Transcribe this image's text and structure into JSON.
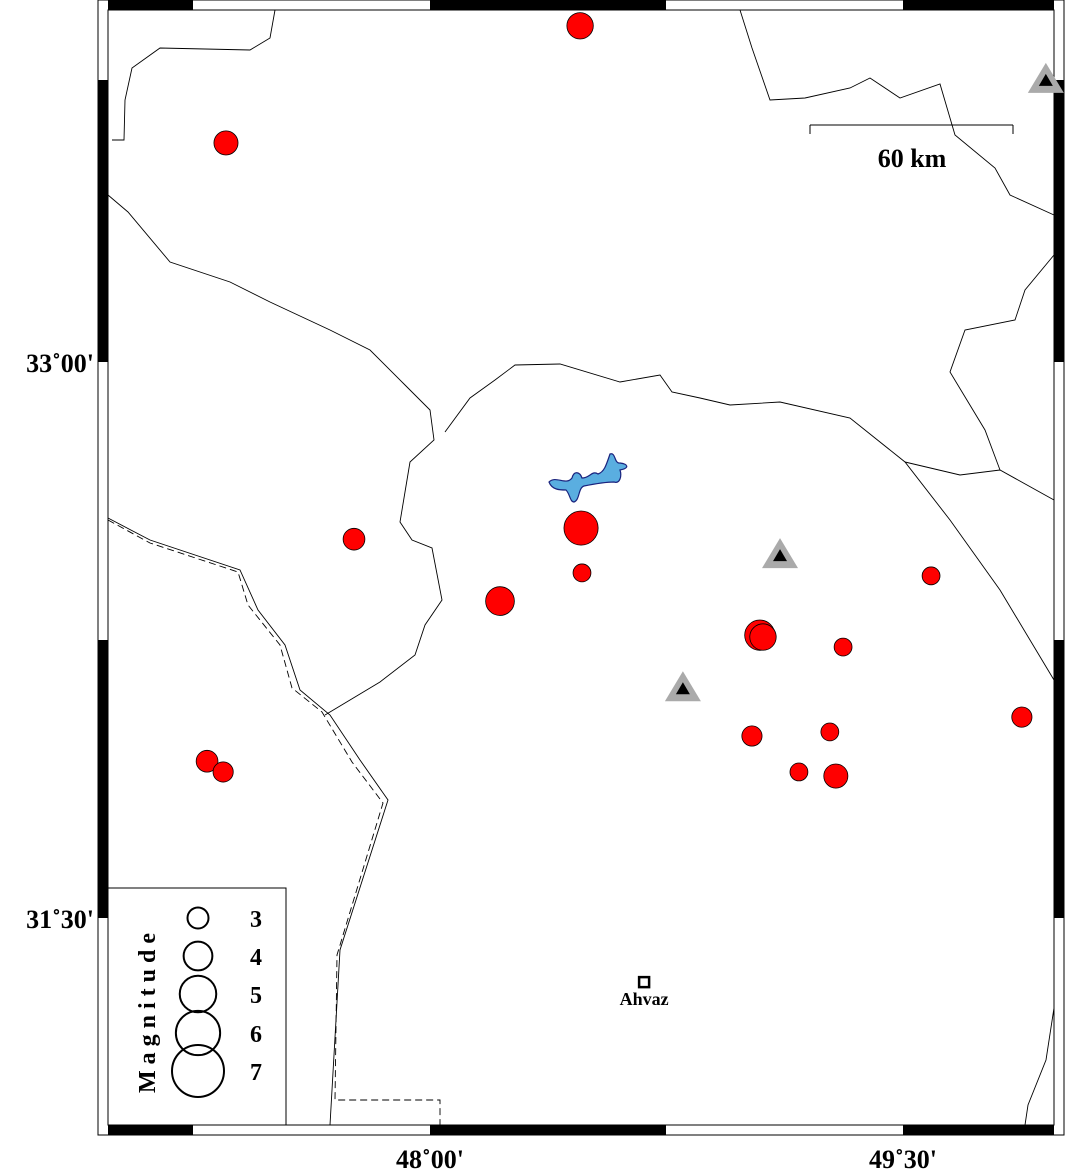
{
  "map": {
    "lon_ticks": [
      {
        "value": 48.0,
        "label": "48˚00'"
      },
      {
        "value": 49.5,
        "label": "49˚30'"
      }
    ],
    "lat_ticks": [
      {
        "value": 33.0,
        "label": "33˚00'"
      },
      {
        "value": 31.5,
        "label": "31˚30'"
      }
    ],
    "scale_bar": {
      "label": "60 km"
    },
    "colors": {
      "earthquake": "#ff0000",
      "lake": "#5aaee0",
      "lake_outline": "#1a237e",
      "station_outer": "#aaaaaa",
      "station_inner": "#000000"
    },
    "earthquakes": [
      {
        "lon": 48.476,
        "lat": 33.907,
        "mag": 3.7
      },
      {
        "lon": 47.353,
        "lat": 33.591,
        "mag": 3.4
      },
      {
        "lon": 47.759,
        "lat": 32.522,
        "mag": 3.1
      },
      {
        "lon": 48.479,
        "lat": 32.552,
        "mag": 4.7
      },
      {
        "lon": 48.482,
        "lat": 32.431,
        "mag": 2.6
      },
      {
        "lon": 48.222,
        "lat": 32.355,
        "mag": 4.0
      },
      {
        "lon": 49.046,
        "lat": 32.263,
        "mag": 4.2
      },
      {
        "lon": 49.056,
        "lat": 32.258,
        "mag": 3.7
      },
      {
        "lon": 49.31,
        "lat": 32.231,
        "mag": 2.6
      },
      {
        "lon": 49.589,
        "lat": 32.423,
        "mag": 2.6
      },
      {
        "lon": 49.877,
        "lat": 32.042,
        "mag": 2.9
      },
      {
        "lon": 49.021,
        "lat": 31.991,
        "mag": 2.9
      },
      {
        "lon": 49.268,
        "lat": 32.002,
        "mag": 2.6
      },
      {
        "lon": 49.17,
        "lat": 31.894,
        "mag": 2.6
      },
      {
        "lon": 49.287,
        "lat": 31.883,
        "mag": 3.4
      },
      {
        "lon": 47.293,
        "lat": 31.923,
        "mag": 3.1
      },
      {
        "lon": 47.344,
        "lat": 31.894,
        "mag": 2.9
      }
    ],
    "stations": [
      {
        "lon": 49.953,
        "lat": 33.761
      },
      {
        "lon": 49.11,
        "lat": 32.479
      },
      {
        "lon": 48.802,
        "lat": 32.12
      }
    ],
    "cities": [
      {
        "name": "Ahvaz",
        "lon": 48.679,
        "lat": 31.327
      }
    ]
  },
  "legend": {
    "title": "Magnitude",
    "items": [
      {
        "mag": 3,
        "label": "3"
      },
      {
        "mag": 4,
        "label": "4"
      },
      {
        "mag": 5,
        "label": "5"
      },
      {
        "mag": 6,
        "label": "6"
      },
      {
        "mag": 7,
        "label": "7"
      }
    ]
  }
}
